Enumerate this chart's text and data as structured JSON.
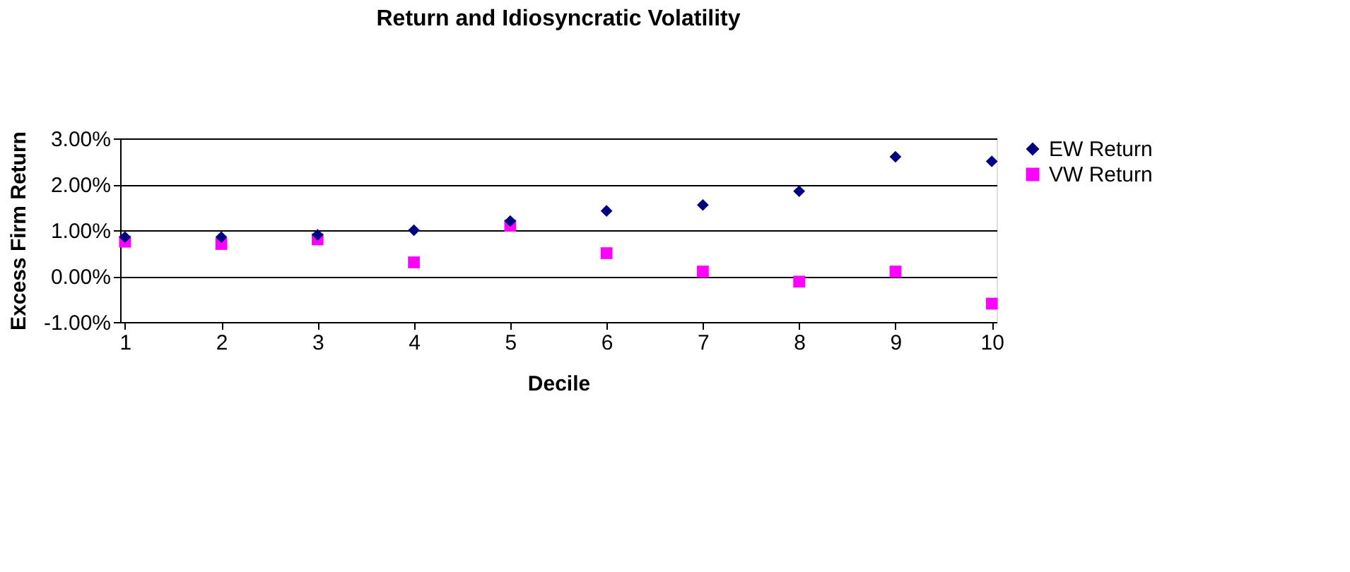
{
  "chart_data": {
    "type": "scatter",
    "title": "Return and Idiosyncratic Volatility",
    "xlabel": "Decile",
    "ylabel": "Excess Firm Return",
    "categories": [
      "1",
      "2",
      "3",
      "4",
      "5",
      "6",
      "7",
      "8",
      "9",
      "10"
    ],
    "series": [
      {
        "name": "EW Return",
        "color": "#000080",
        "marker": "diamond",
        "values": [
          0.85,
          0.85,
          0.9,
          1.0,
          1.2,
          1.42,
          1.55,
          1.85,
          2.6,
          2.5
        ]
      },
      {
        "name": "VW Return",
        "color": "#ff00ff",
        "marker": "square",
        "values": [
          0.75,
          0.7,
          0.8,
          0.3,
          1.1,
          0.5,
          0.1,
          -0.12,
          0.1,
          -0.6
        ]
      }
    ],
    "ylim": [
      -1,
      3
    ],
    "yticks": [
      {
        "value": -1,
        "label": "-1.00%"
      },
      {
        "value": 0,
        "label": "0.00%"
      },
      {
        "value": 1,
        "label": "1.00%"
      },
      {
        "value": 2,
        "label": "2.00%"
      },
      {
        "value": 3,
        "label": "3.00%"
      }
    ],
    "grid": "y",
    "legend": "right"
  }
}
